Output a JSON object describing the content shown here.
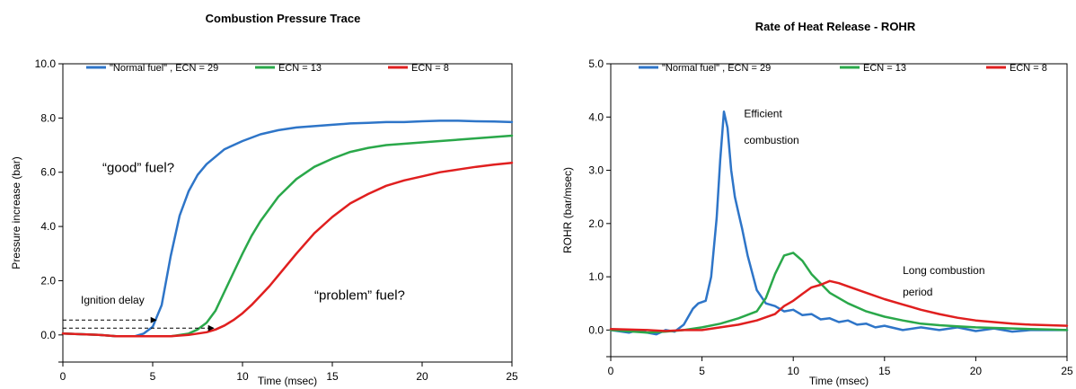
{
  "chart_data": [
    {
      "type": "line",
      "title": "Combustion Pressure Trace",
      "xlabel": "Time (msec)",
      "ylabel": "Pressure increase (bar)",
      "xlim": [
        0,
        25
      ],
      "ylim": [
        -1,
        10
      ],
      "xticks": [
        0,
        5,
        10,
        15,
        20,
        25
      ],
      "yticks": [
        0.0,
        2.0,
        4.0,
        6.0,
        8.0,
        10.0
      ],
      "ytick_labels": [
        "0.0",
        "2.0",
        "4.0",
        "6.0",
        "8.0",
        "10.0"
      ],
      "grid": false,
      "legend_position": "top",
      "series": [
        {
          "name": "\"Normal fuel\" , ECN = 29",
          "color": "#2e75c8",
          "x": [
            0,
            2,
            3,
            4,
            4.5,
            5,
            5.5,
            6,
            6.5,
            7,
            7.5,
            8,
            9,
            10,
            11,
            12,
            13,
            14,
            15,
            16,
            17,
            18,
            19,
            20,
            21,
            22,
            23,
            24,
            25
          ],
          "y": [
            0.05,
            0.0,
            -0.05,
            -0.05,
            0.05,
            0.3,
            1.1,
            2.9,
            4.4,
            5.3,
            5.9,
            6.3,
            6.85,
            7.15,
            7.4,
            7.55,
            7.65,
            7.7,
            7.75,
            7.8,
            7.82,
            7.85,
            7.85,
            7.88,
            7.9,
            7.9,
            7.88,
            7.87,
            7.85
          ]
        },
        {
          "name": "ECN = 13",
          "color": "#2aa84a",
          "x": [
            0,
            2,
            3,
            4,
            5,
            6,
            7,
            7.5,
            8,
            8.5,
            9,
            9.5,
            10,
            10.5,
            11,
            12,
            13,
            14,
            15,
            16,
            17,
            18,
            19,
            20,
            21,
            22,
            23,
            24,
            25
          ],
          "y": [
            0.05,
            0.0,
            -0.05,
            -0.05,
            -0.05,
            -0.05,
            0.05,
            0.2,
            0.45,
            0.9,
            1.6,
            2.3,
            3.0,
            3.65,
            4.2,
            5.1,
            5.75,
            6.2,
            6.5,
            6.75,
            6.9,
            7.0,
            7.05,
            7.1,
            7.15,
            7.2,
            7.25,
            7.3,
            7.35
          ]
        },
        {
          "name": "ECN = 8",
          "color": "#e01f1f",
          "x": [
            0,
            2,
            3,
            4,
            5,
            6,
            7,
            8,
            8.5,
            9,
            9.5,
            10,
            10.5,
            11,
            11.5,
            12,
            13,
            14,
            15,
            16,
            17,
            18,
            19,
            20,
            21,
            22,
            23,
            24,
            25
          ],
          "y": [
            0.05,
            0.0,
            -0.05,
            -0.05,
            -0.05,
            -0.05,
            0.0,
            0.1,
            0.2,
            0.35,
            0.55,
            0.8,
            1.1,
            1.45,
            1.8,
            2.2,
            3.0,
            3.75,
            4.35,
            4.85,
            5.2,
            5.5,
            5.7,
            5.85,
            6.0,
            6.1,
            6.2,
            6.28,
            6.35
          ]
        }
      ],
      "annotations": [
        {
          "text": "“good” fuel?",
          "x": 2.2,
          "y": 6.0
        },
        {
          "text": "“problem” fuel?",
          "x": 14,
          "y": 1.3
        },
        {
          "text": "Ignition delay",
          "x": 1.0,
          "y": 1.15
        }
      ],
      "arrows": [
        {
          "x0": 0,
          "x1": 5.2,
          "y": 0.55
        },
        {
          "x0": 0,
          "x1": 8.4,
          "y": 0.25
        }
      ]
    },
    {
      "type": "line",
      "title": "Rate of Heat Release - ROHR",
      "xlabel": "Time (msec)",
      "ylabel": "ROHR (bar/msec)",
      "xlim": [
        0,
        25
      ],
      "ylim": [
        -0.5,
        5.0
      ],
      "xticks": [
        0,
        5,
        10,
        15,
        20,
        25
      ],
      "yticks": [
        0.0,
        1.0,
        2.0,
        3.0,
        4.0,
        5.0
      ],
      "ytick_labels": [
        "0.0",
        "1.0",
        "2.0",
        "3.0",
        "4.0",
        "5.0"
      ],
      "grid": false,
      "legend_position": "top",
      "series": [
        {
          "name": "\"Normal fuel\" , ECN = 29",
          "color": "#2e75c8",
          "x": [
            0,
            1,
            1.5,
            2,
            2.5,
            3,
            3.5,
            4,
            4.5,
            4.8,
            5.2,
            5.5,
            5.8,
            6.0,
            6.2,
            6.4,
            6.6,
            6.8,
            7.0,
            7.2,
            7.5,
            8.0,
            8.5,
            9.0,
            9.5,
            10.0,
            10.5,
            11.0,
            11.5,
            12.0,
            12.5,
            13.0,
            13.5,
            14.0,
            14.5,
            15.0,
            16.0,
            17.0,
            18.0,
            19.0,
            20.0,
            21.0,
            22.0,
            23.0,
            24.0,
            25.0
          ],
          "y": [
            0.0,
            -0.05,
            0.0,
            -0.05,
            -0.08,
            0.0,
            -0.03,
            0.1,
            0.4,
            0.5,
            0.55,
            1.0,
            2.1,
            3.2,
            4.1,
            3.8,
            3.0,
            2.5,
            2.2,
            1.9,
            1.4,
            0.75,
            0.5,
            0.45,
            0.35,
            0.38,
            0.28,
            0.3,
            0.2,
            0.22,
            0.15,
            0.18,
            0.1,
            0.12,
            0.05,
            0.08,
            0.0,
            0.05,
            0.0,
            0.05,
            -0.02,
            0.03,
            -0.03,
            0.0,
            0.0,
            0.0
          ]
        },
        {
          "name": "ECN = 13",
          "color": "#2aa84a",
          "x": [
            0,
            2,
            3,
            4,
            5,
            6,
            7,
            8,
            8.5,
            9,
            9.5,
            10.0,
            10.5,
            11,
            12,
            13,
            14,
            15,
            16,
            17,
            18,
            19,
            20,
            21,
            22,
            23,
            24,
            25
          ],
          "y": [
            0.0,
            -0.05,
            -0.03,
            0.0,
            0.05,
            0.12,
            0.22,
            0.35,
            0.6,
            1.05,
            1.4,
            1.45,
            1.3,
            1.05,
            0.7,
            0.5,
            0.35,
            0.25,
            0.18,
            0.12,
            0.09,
            0.07,
            0.05,
            0.04,
            0.03,
            0.02,
            0.01,
            0.0
          ]
        },
        {
          "name": "ECN = 8",
          "color": "#e01f1f",
          "x": [
            0,
            2,
            3,
            4,
            5,
            6,
            7,
            8,
            9,
            9.5,
            10,
            10.5,
            11,
            11.5,
            12,
            12.5,
            13,
            14,
            15,
            16,
            17,
            18,
            19,
            20,
            21,
            22,
            23,
            24,
            25
          ],
          "y": [
            0.02,
            0.0,
            -0.02,
            0.0,
            0.0,
            0.05,
            0.1,
            0.18,
            0.3,
            0.45,
            0.55,
            0.68,
            0.8,
            0.85,
            0.92,
            0.88,
            0.82,
            0.7,
            0.58,
            0.48,
            0.38,
            0.3,
            0.23,
            0.18,
            0.15,
            0.12,
            0.1,
            0.09,
            0.08
          ]
        }
      ],
      "annotations": [
        {
          "text": "Efficient",
          "x": 7.3,
          "y": 4.0
        },
        {
          "text": "combustion",
          "x": 7.3,
          "y": 3.5
        },
        {
          "text": "Long combustion",
          "x": 16.0,
          "y": 1.05
        },
        {
          "text": "period",
          "x": 16.0,
          "y": 0.65
        }
      ]
    }
  ]
}
